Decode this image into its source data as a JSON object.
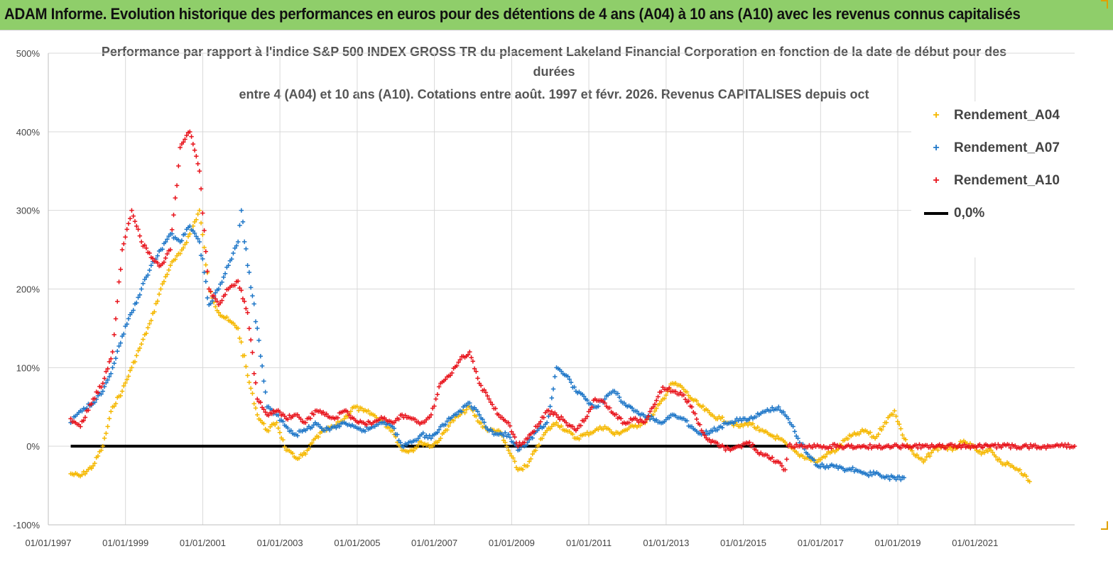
{
  "banner": {
    "title": "ADAM Informe. Evolution historique des performances en euros pour des détentions de 4 ans (A04) à 10 ans (A10) avec les revenus connus capitalisés"
  },
  "colors": {
    "banner_bg": "#8fce6a",
    "A04": "#f5b800",
    "A07": "#1f77c8",
    "A10": "#e8141c",
    "zero_line": "#000000",
    "grid": "#d9d9d9"
  },
  "chart_data": {
    "type": "scatter",
    "title_lines": [
      "Performance par rapport à l'indice S&P 500 INDEX GROSS TR  du placement Lakeland Financial Corporation en fonction de la date de début pour des",
      "durées",
      "entre 4 (A04) et 10 ans (A10). Cotations entre août. 1997 et févr. 2026. Revenus CAPITALISES depuis oct"
    ],
    "ylim": [
      -100,
      500
    ],
    "yticks": [
      "-100%",
      "0%",
      "100%",
      "200%",
      "300%",
      "400%",
      "500%"
    ],
    "ytick_values": [
      -100,
      0,
      100,
      200,
      300,
      400,
      500
    ],
    "xlim": [
      "1997-01-01",
      "2023-08-01"
    ],
    "xticks": [
      "01/01/1997",
      "01/01/1999",
      "01/01/2001",
      "01/01/2003",
      "01/01/2005",
      "01/01/2007",
      "01/01/2009",
      "01/01/2011",
      "01/01/2013",
      "01/01/2015",
      "01/01/2017",
      "01/01/2019",
      "01/01/2021"
    ],
    "xtick_dates": [
      "1997-01-01",
      "1999-01-01",
      "2001-01-01",
      "2003-01-01",
      "2005-01-01",
      "2007-01-01",
      "2009-01-01",
      "2011-01-01",
      "2013-01-01",
      "2015-01-01",
      "2017-01-01",
      "2019-01-01",
      "2021-01-01"
    ],
    "grid": true,
    "legend_position": "right",
    "series": [
      {
        "name": "Rendement_A04",
        "marker": "+",
        "color": "#f5b800",
        "x": [
          "1997-08-01",
          "1997-11-01",
          "1998-03-01",
          "1998-06-01",
          "1998-09-01",
          "1998-12-01",
          "1999-03-01",
          "1999-06-01",
          "1999-09-01",
          "1999-12-01",
          "2000-03-01",
          "2000-06-01",
          "2000-09-01",
          "2000-12-01",
          "2001-03-01",
          "2001-06-01",
          "2001-09-01",
          "2001-12-01",
          "2002-03-01",
          "2002-06-01",
          "2002-09-01",
          "2002-12-01",
          "2003-03-01",
          "2003-06-01",
          "2003-09-01",
          "2003-12-01",
          "2004-03-01",
          "2004-06-01",
          "2004-09-01",
          "2004-12-01",
          "2005-03-01",
          "2005-06-01",
          "2005-09-01",
          "2005-12-01",
          "2006-03-01",
          "2006-06-01",
          "2006-09-01",
          "2006-12-01",
          "2007-03-01",
          "2007-06-01",
          "2007-09-01",
          "2007-12-01",
          "2008-03-01",
          "2008-06-01",
          "2008-09-01",
          "2008-12-01",
          "2009-03-01",
          "2009-06-01",
          "2009-09-01",
          "2009-12-01",
          "2010-03-01",
          "2010-06-01",
          "2010-09-01",
          "2010-12-01",
          "2011-03-01",
          "2011-06-01",
          "2011-09-01",
          "2011-12-01",
          "2012-03-01",
          "2012-06-01",
          "2012-09-01",
          "2012-12-01",
          "2013-03-01",
          "2013-06-01",
          "2013-09-01",
          "2013-12-01",
          "2014-03-01",
          "2014-06-01",
          "2014-09-01",
          "2014-12-01",
          "2015-03-01",
          "2015-06-01",
          "2015-09-01",
          "2015-12-01",
          "2016-03-01",
          "2016-06-01",
          "2016-09-01",
          "2016-12-01",
          "2017-03-01",
          "2017-06-01",
          "2017-09-01",
          "2017-12-01",
          "2018-03-01",
          "2018-06-01",
          "2018-09-01",
          "2018-12-01",
          "2019-03-01",
          "2019-06-01",
          "2019-09-01",
          "2019-12-01",
          "2020-03-01",
          "2020-06-01",
          "2020-09-01",
          "2020-12-01",
          "2021-03-01",
          "2021-06-01",
          "2021-09-01",
          "2021-12-01",
          "2022-03-01",
          "2022-06-01"
        ],
        "y": [
          -35,
          -38,
          -25,
          0,
          50,
          70,
          100,
          130,
          160,
          200,
          230,
          245,
          270,
          300,
          200,
          170,
          160,
          150,
          90,
          40,
          20,
          30,
          -5,
          -15,
          -10,
          10,
          20,
          25,
          35,
          50,
          45,
          40,
          30,
          20,
          -5,
          -5,
          5,
          0,
          10,
          30,
          40,
          50,
          30,
          20,
          20,
          -5,
          -30,
          -25,
          0,
          20,
          30,
          20,
          10,
          15,
          20,
          25,
          15,
          20,
          25,
          30,
          40,
          60,
          80,
          75,
          60,
          50,
          40,
          35,
          30,
          25,
          30,
          20,
          15,
          10,
          0,
          -10,
          -15,
          -20,
          -10,
          -5,
          10,
          15,
          20,
          10,
          30,
          45,
          10,
          -10,
          -20,
          -5,
          0,
          -5,
          5,
          0,
          -10,
          -5,
          -20,
          -25,
          -30,
          -45
        ]
      },
      {
        "name": "Rendement_A07",
        "marker": "+",
        "color": "#1f77c8",
        "x": [
          "1997-08-01",
          "1997-11-01",
          "1998-03-01",
          "1998-06-01",
          "1998-09-01",
          "1998-12-01",
          "1999-03-01",
          "1999-06-01",
          "1999-09-01",
          "1999-12-01",
          "2000-03-01",
          "2000-06-01",
          "2000-09-01",
          "2000-12-01",
          "2001-03-01",
          "2001-06-01",
          "2001-09-01",
          "2001-12-01",
          "2002-01-01",
          "2002-03-01",
          "2002-06-01",
          "2002-09-01",
          "2002-12-01",
          "2003-03-01",
          "2003-06-01",
          "2003-09-01",
          "2003-12-01",
          "2004-03-01",
          "2004-06-01",
          "2004-09-01",
          "2004-12-01",
          "2005-03-01",
          "2005-06-01",
          "2005-09-01",
          "2005-12-01",
          "2006-03-01",
          "2006-06-01",
          "2006-09-01",
          "2006-12-01",
          "2007-03-01",
          "2007-06-01",
          "2007-09-01",
          "2007-12-01",
          "2008-03-01",
          "2008-06-01",
          "2008-09-01",
          "2008-12-01",
          "2009-03-01",
          "2009-06-01",
          "2009-09-01",
          "2009-12-01",
          "2010-03-01",
          "2010-06-01",
          "2010-09-01",
          "2010-12-01",
          "2011-03-01",
          "2011-06-01",
          "2011-09-01",
          "2011-12-01",
          "2012-03-01",
          "2012-06-01",
          "2012-09-01",
          "2012-12-01",
          "2013-03-01",
          "2013-06-01",
          "2013-09-01",
          "2013-12-01",
          "2014-03-01",
          "2014-06-01",
          "2014-09-01",
          "2014-12-01",
          "2015-03-01",
          "2015-06-01",
          "2015-09-01",
          "2015-12-01",
          "2016-03-01",
          "2016-06-01",
          "2016-09-01",
          "2016-12-01",
          "2017-03-01",
          "2017-06-01",
          "2017-09-01",
          "2017-12-01",
          "2018-03-01",
          "2018-06-01",
          "2018-09-01",
          "2018-12-01",
          "2019-03-01"
        ],
        "y": [
          30,
          45,
          55,
          70,
          100,
          140,
          170,
          200,
          230,
          250,
          270,
          260,
          280,
          260,
          180,
          200,
          230,
          260,
          300,
          230,
          150,
          50,
          40,
          25,
          15,
          20,
          30,
          20,
          25,
          30,
          25,
          20,
          25,
          30,
          25,
          0,
          5,
          15,
          10,
          25,
          35,
          45,
          55,
          40,
          20,
          15,
          15,
          -5,
          5,
          20,
          30,
          100,
          90,
          70,
          60,
          50,
          60,
          70,
          55,
          45,
          40,
          35,
          30,
          40,
          35,
          25,
          15,
          20,
          25,
          30,
          35,
          35,
          40,
          45,
          50,
          35,
          10,
          -10,
          -25,
          -25,
          -25,
          -30,
          -30,
          -35,
          -35,
          -40,
          -40,
          -40
        ]
      },
      {
        "name": "Rendement_A10",
        "marker": "+",
        "color": "#e8141c",
        "x": [
          "1997-08-01",
          "1997-11-01",
          "1998-03-01",
          "1998-06-01",
          "1998-09-01",
          "1998-12-01",
          "1999-03-01",
          "1999-06-01",
          "1999-09-01",
          "1999-12-01",
          "2000-03-01",
          "2000-06-01",
          "2000-09-01",
          "2000-12-01",
          "2001-03-01",
          "2001-06-01",
          "2001-09-01",
          "2001-12-01",
          "2002-03-01",
          "2002-06-01",
          "2002-09-01",
          "2002-12-01",
          "2003-03-01",
          "2003-06-01",
          "2003-09-01",
          "2003-12-01",
          "2004-03-01",
          "2004-06-01",
          "2004-09-01",
          "2004-12-01",
          "2005-03-01",
          "2005-06-01",
          "2005-09-01",
          "2005-12-01",
          "2006-03-01",
          "2006-06-01",
          "2006-09-01",
          "2006-12-01",
          "2007-03-01",
          "2007-06-01",
          "2007-09-01",
          "2007-12-01",
          "2008-03-01",
          "2008-06-01",
          "2008-09-01",
          "2008-12-01",
          "2009-03-01",
          "2009-06-01",
          "2009-09-01",
          "2009-12-01",
          "2010-03-01",
          "2010-06-01",
          "2010-09-01",
          "2010-12-01",
          "2011-03-01",
          "2011-06-01",
          "2011-09-01",
          "2011-12-01",
          "2012-03-01",
          "2012-06-01",
          "2012-09-01",
          "2012-12-01",
          "2013-03-01",
          "2013-06-01",
          "2013-09-01",
          "2013-12-01",
          "2014-03-01",
          "2014-06-01",
          "2014-09-01",
          "2014-12-01",
          "2015-03-01",
          "2015-06-01",
          "2015-09-01",
          "2015-12-01",
          "2016-02-01",
          "2016-03-01",
          "2016-06-01",
          "2017-01-01",
          "2018-01-01",
          "2019-01-01",
          "2020-01-01",
          "2021-01-01",
          "2022-01-01",
          "2023-01-01",
          "2023-08-01"
        ],
        "y": [
          35,
          25,
          60,
          80,
          120,
          250,
          300,
          260,
          240,
          230,
          250,
          380,
          400,
          350,
          200,
          180,
          200,
          210,
          170,
          60,
          40,
          45,
          35,
          40,
          30,
          45,
          40,
          35,
          45,
          35,
          30,
          30,
          35,
          30,
          40,
          35,
          30,
          40,
          80,
          90,
          110,
          120,
          80,
          60,
          40,
          30,
          0,
          10,
          25,
          45,
          40,
          30,
          20,
          35,
          60,
          55,
          40,
          30,
          35,
          30,
          50,
          75,
          70,
          65,
          50,
          20,
          5,
          0,
          -5,
          0,
          5,
          -10,
          -15,
          -20,
          -30,
          0,
          0,
          0,
          0,
          0,
          0,
          0,
          0,
          0,
          0
        ]
      }
    ],
    "reference_line": {
      "name": "0,0%",
      "y": 0,
      "x_start": "1997-08-01",
      "x_end": "2016-03-01"
    }
  }
}
